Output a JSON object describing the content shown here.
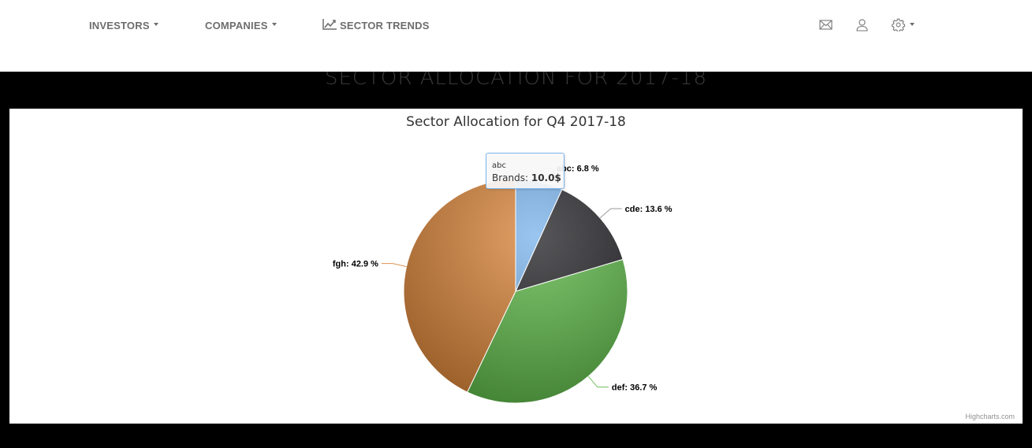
{
  "nav": {
    "investors": "INVESTORS",
    "companies": "COMPANIES",
    "sector_trends": "SECTOR TRENDS",
    "icons": [
      "mail-icon",
      "user-icon",
      "gear-icon"
    ]
  },
  "page": {
    "heading": "SECTOR ALLOCATION FOR 2017-18"
  },
  "chart": {
    "credits": "Highcharts.com",
    "tooltip": {
      "name": "abc",
      "series": "Brands",
      "value": "10.0$"
    }
  },
  "chart_data": {
    "type": "pie",
    "title": "Sector Allocation for Q4 2017-18",
    "series_name": "Brands",
    "slices": [
      {
        "name": "abc",
        "percent": 6.8,
        "label": "abc: 6.8 %",
        "color": "#7cb5ec"
      },
      {
        "name": "cde",
        "percent": 13.6,
        "label": "cde: 13.6 %",
        "color": "#27272b"
      },
      {
        "name": "def",
        "percent": 36.7,
        "label": "def: 36.7 %",
        "color": "#5fb84a"
      },
      {
        "name": "fgh",
        "percent": 42.9,
        "label": "fgh: 42.9 %",
        "color": "#d9853b"
      }
    ]
  }
}
